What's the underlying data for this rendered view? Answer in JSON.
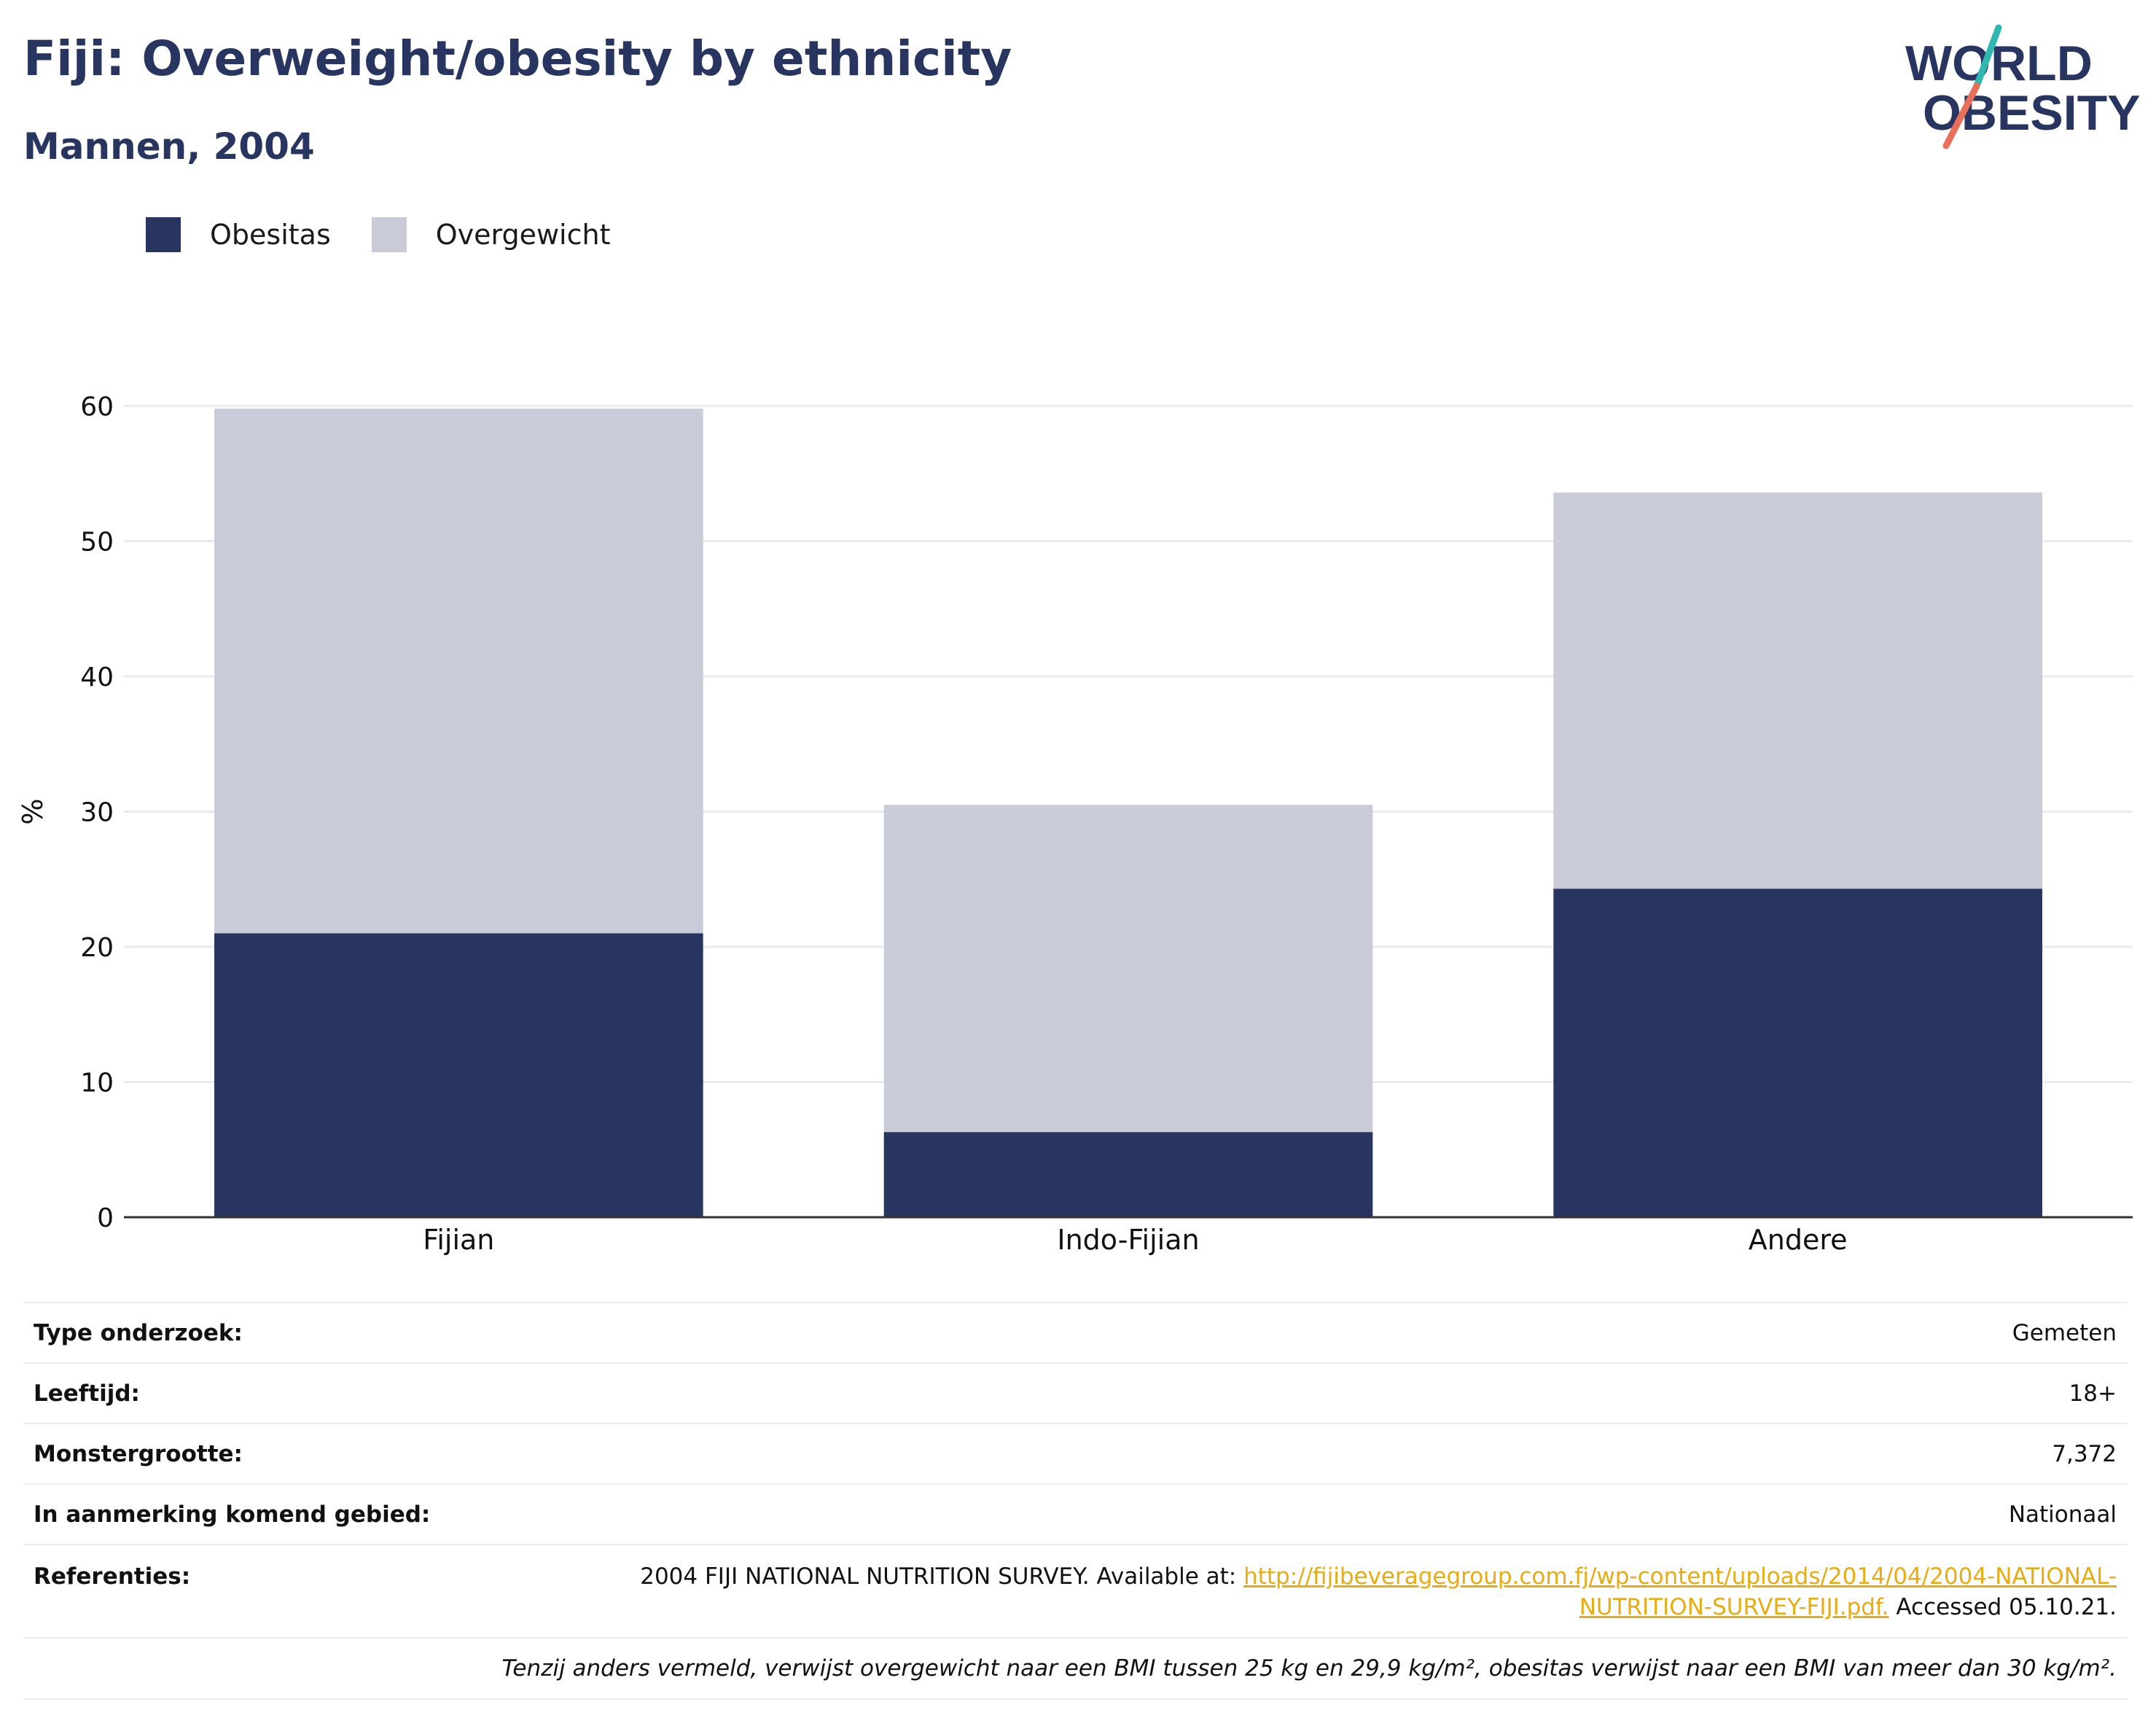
{
  "header": {
    "title": "Fiji: Overweight/obesity by ethnicity",
    "subtitle": "Mannen, 2004",
    "logo_line1": "WORLD",
    "logo_line2": "OBESITY"
  },
  "colors": {
    "obesity": "#293561",
    "overweight": "#c9ccd8",
    "text_dark": "#283561",
    "link": "#e6ac14",
    "logo_teal": "#2fb8b0",
    "logo_coral": "#e8705a"
  },
  "legend": [
    {
      "label": "Obesitas",
      "color": "#293561"
    },
    {
      "label": "Overgewicht",
      "color": "#c9ccd8"
    }
  ],
  "chart_data": {
    "type": "bar",
    "stacked": true,
    "categories": [
      "Fijian",
      "Indo-Fijian",
      "Andere"
    ],
    "series": [
      {
        "name": "Obesitas",
        "values": [
          21.0,
          6.3,
          24.3
        ]
      },
      {
        "name": "Overgewicht",
        "values": [
          38.8,
          24.2,
          29.3
        ]
      }
    ],
    "ylabel": "%",
    "xlabel": "",
    "ylim": [
      0,
      60
    ],
    "yticks": [
      0,
      10,
      20,
      30,
      40,
      50,
      60
    ],
    "grid": true,
    "legend_position": "top-left"
  },
  "details": {
    "rows": [
      {
        "key": "Type onderzoek:",
        "value": "Gemeten"
      },
      {
        "key": "Leeftijd:",
        "value": "18+"
      },
      {
        "key": "Monstergrootte:",
        "value": "7,372"
      },
      {
        "key": "In aanmerking komend gebied:",
        "value": "Nationaal"
      }
    ],
    "references": {
      "key": "Referenties:",
      "text_before": "2004 FIJI NATIONAL NUTRITION SURVEY. Available at: ",
      "link_line1": "http://fijibeveragegroup.com.fj/wp-content/uploads/2014/04/2004-NATIONAL-",
      "link_line2": "NUTRITION-SURVEY-FIJI.pdf.",
      "text_after": " Accessed 05.10.21."
    },
    "note": "Tenzij anders vermeld, verwijst overgewicht naar een BMI tussen 25 kg en 29,9 kg/m², obesitas verwijst naar een BMI van meer dan 30 kg/m²."
  }
}
